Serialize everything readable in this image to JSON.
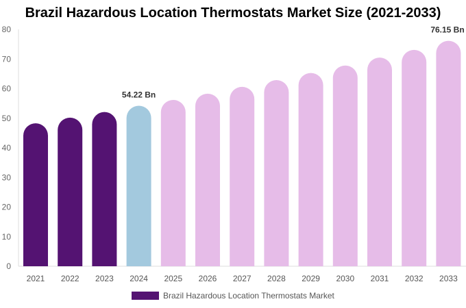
{
  "chart_data": {
    "type": "bar",
    "title": "Brazil Hazardous Location Thermostats Market Size (2021-2033)",
    "categories": [
      "2021",
      "2022",
      "2023",
      "2024",
      "2025",
      "2026",
      "2027",
      "2028",
      "2029",
      "2030",
      "2031",
      "2032",
      "2033"
    ],
    "series": [
      {
        "name": "Brazil Hazardous Location Thermostats Market",
        "values": [
          48.3,
          50.2,
          52.1,
          54.22,
          56.2,
          58.3,
          60.6,
          62.9,
          65.3,
          67.8,
          70.5,
          73.1,
          76.15
        ]
      }
    ],
    "data_labels": {
      "3": "54.22 Bn",
      "12": "76.15 Bn"
    },
    "ylim": [
      0,
      80
    ],
    "yticks": [
      0,
      10,
      20,
      30,
      40,
      50,
      60,
      70,
      80
    ],
    "grid": false,
    "legend": "bottom",
    "colors": {
      "historical": "#541372",
      "current": "#a3c9de",
      "forecast": "#e6bce8"
    }
  }
}
